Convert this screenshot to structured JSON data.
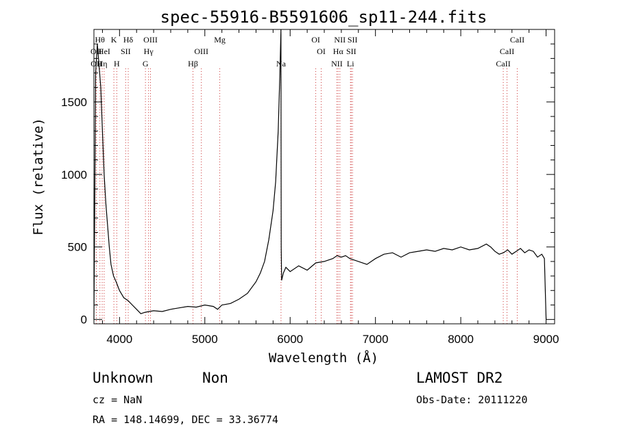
{
  "chart_data": {
    "type": "line",
    "title": "spec-55916-B5591606_sp11-244.fits",
    "xlabel": "Wavelength (Å)",
    "ylabel": "Flux (relative)",
    "xlim": [
      3700,
      9100
    ],
    "ylim": [
      -30,
      2000
    ],
    "xticks": [
      4000,
      5000,
      6000,
      7000,
      8000,
      9000
    ],
    "xtick_labels": [
      "4000",
      "5000",
      "6000",
      "7000",
      "8000",
      "9000"
    ],
    "yticks": [
      0,
      500,
      1000,
      1500
    ],
    "ytick_labels": [
      "0",
      "500",
      "1000",
      "1500"
    ],
    "grid": false,
    "line_color": "#000000",
    "marker_line_color": "#cc3333",
    "series": [
      {
        "x": [
          3700,
          3720,
          3740,
          3760,
          3780,
          3800,
          3820,
          3840,
          3860,
          3880,
          3900,
          3930,
          3960,
          4000,
          4050,
          4100,
          4150,
          4200,
          4250,
          4300,
          4400,
          4500,
          4600,
          4700,
          4800,
          4900,
          5000,
          5100,
          5150,
          5200,
          5300,
          5400,
          5500,
          5600,
          5650,
          5700,
          5750,
          5800,
          5830,
          5860,
          5880,
          5892,
          5895,
          5900,
          5920,
          5950,
          6000,
          6100,
          6200,
          6300,
          6400,
          6500,
          6550,
          6600,
          6650,
          6700,
          6800,
          6900,
          7000,
          7100,
          7200,
          7300,
          7400,
          7500,
          7600,
          7700,
          7800,
          7900,
          8000,
          8100,
          8200,
          8300,
          8350,
          8400,
          8450,
          8500,
          8550,
          8600,
          8650,
          8700,
          8750,
          8800,
          8850,
          8900,
          8950,
          8980,
          9000
        ],
        "y": [
          0,
          1700,
          1900,
          1750,
          1600,
          1300,
          1000,
          800,
          650,
          500,
          380,
          300,
          260,
          200,
          150,
          130,
          100,
          70,
          40,
          50,
          60,
          55,
          70,
          80,
          90,
          85,
          100,
          90,
          70,
          100,
          110,
          140,
          180,
          260,
          320,
          400,
          550,
          750,
          950,
          1300,
          1700,
          2000,
          500,
          270,
          320,
          360,
          330,
          370,
          340,
          390,
          400,
          420,
          440,
          430,
          440,
          420,
          400,
          380,
          420,
          450,
          460,
          430,
          460,
          470,
          480,
          470,
          490,
          480,
          500,
          480,
          490,
          520,
          500,
          470,
          450,
          460,
          480,
          450,
          470,
          490,
          460,
          480,
          470,
          430,
          450,
          420,
          0
        ]
      }
    ],
    "line_markers": [
      {
        "x": 3727,
        "label": "OII",
        "row": 1
      },
      {
        "x": 3729,
        "label": "OII",
        "row": 2
      },
      {
        "x": 3770,
        "label": "Hθ",
        "row": 0
      },
      {
        "x": 3797,
        "label": "Hη",
        "row": 2
      },
      {
        "x": 3820,
        "label": "HeI",
        "row": 1
      },
      {
        "x": 3934,
        "label": "K",
        "row": 0
      },
      {
        "x": 3968,
        "label": "H",
        "row": 2
      },
      {
        "x": 4072,
        "label": "SII",
        "row": 1
      },
      {
        "x": 4102,
        "label": "Hδ",
        "row": 0
      },
      {
        "x": 4304,
        "label": "G",
        "row": 2
      },
      {
        "x": 4340,
        "label": "Hγ",
        "row": 1
      },
      {
        "x": 4363,
        "label": "OIII",
        "row": 0
      },
      {
        "x": 4861,
        "label": "Hβ",
        "row": 2
      },
      {
        "x": 4959,
        "label": "OIII",
        "row": 1
      },
      {
        "x": 5175,
        "label": "Mg",
        "row": 0
      },
      {
        "x": 5893,
        "label": "Na",
        "row": 2
      },
      {
        "x": 6300,
        "label": "OI",
        "row": 0
      },
      {
        "x": 6364,
        "label": "OI",
        "row": 1
      },
      {
        "x": 6548,
        "label": "NII",
        "row": 2
      },
      {
        "x": 6563,
        "label": "Hα",
        "row": 1
      },
      {
        "x": 6583,
        "label": "NII",
        "row": 0
      },
      {
        "x": 6707,
        "label": "Li",
        "row": 2
      },
      {
        "x": 6716,
        "label": "SII",
        "row": 1
      },
      {
        "x": 6731,
        "label": "SII",
        "row": 0
      },
      {
        "x": 8498,
        "label": "CaII",
        "row": 2
      },
      {
        "x": 8542,
        "label": "CaII",
        "row": 1
      },
      {
        "x": 8662,
        "label": "CaII",
        "row": 0
      }
    ]
  },
  "info": {
    "object_class": "Unknown",
    "subclass": "Non",
    "cz": "cz = NaN",
    "coords": "RA = 148.14699, DEC =  33.36774",
    "survey": "LAMOST DR2",
    "obs_date": "Obs-Date: 20111220"
  }
}
